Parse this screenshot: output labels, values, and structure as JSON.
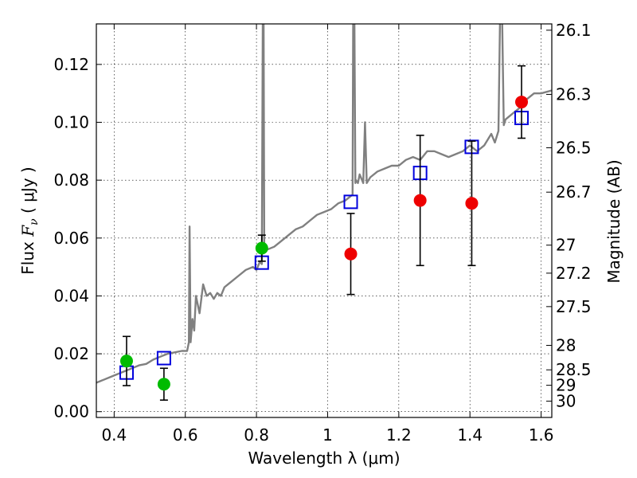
{
  "chart_data": {
    "type": "scatter",
    "xlabel": "Wavelength  λ (μm)",
    "ylabel": "Flux  F_ν  ( μJy )",
    "ylabel_parts": {
      "pre": "Flux  ",
      "var": "F",
      "sub": "ν",
      "post": "  ( μJy )"
    },
    "y2label": "Magnitude (AB)",
    "xlim": [
      0.35,
      1.63
    ],
    "ylim": [
      -0.002,
      0.134
    ],
    "x_ticks": [
      0.4,
      0.6,
      0.8,
      1.0,
      1.2,
      1.4,
      1.6
    ],
    "x_tick_labels": [
      "0.4",
      "0.6",
      "0.8",
      "1",
      "1.2",
      "1.4",
      "1.6"
    ],
    "y_ticks": [
      0.0,
      0.02,
      0.04,
      0.06,
      0.08,
      0.1,
      0.12
    ],
    "y_tick_labels": [
      "0.00",
      "0.02",
      "0.04",
      "0.06",
      "0.08",
      "0.10",
      "0.12"
    ],
    "mag_ticks": [
      "26.1",
      "26.3",
      "26.5",
      "26.7",
      "27",
      "27.2",
      "27.5",
      "28",
      "28.5",
      "29",
      "30"
    ],
    "grid": true,
    "colors": {
      "model": "#808080",
      "green": "#00bb00",
      "red": "#ee0000",
      "model_box": "#0000dd",
      "errorbar": "#000000"
    },
    "series": [
      {
        "kind": "line",
        "x": [
          0.35,
          0.37,
          0.39,
          0.41,
          0.43,
          0.45,
          0.47,
          0.49,
          0.51,
          0.53,
          0.55,
          0.57,
          0.59,
          0.605,
          0.61,
          0.612,
          0.615,
          0.62,
          0.625,
          0.63,
          0.64,
          0.65,
          0.66,
          0.67,
          0.68,
          0.69,
          0.7,
          0.71,
          0.72,
          0.73,
          0.75,
          0.77,
          0.79,
          0.8,
          0.81,
          0.815,
          0.818,
          0.82,
          0.822,
          0.825,
          0.83,
          0.85,
          0.87,
          0.89,
          0.91,
          0.93,
          0.95,
          0.97,
          0.99,
          1.01,
          1.03,
          1.05,
          1.06,
          1.07,
          1.072,
          1.075,
          1.078,
          1.08,
          1.085,
          1.09,
          1.1,
          1.105,
          1.11,
          1.12,
          1.14,
          1.16,
          1.18,
          1.2,
          1.22,
          1.24,
          1.26,
          1.28,
          1.3,
          1.32,
          1.34,
          1.36,
          1.38,
          1.4,
          1.42,
          1.44,
          1.46,
          1.47,
          1.48,
          1.485,
          1.49,
          1.495,
          1.5,
          1.52,
          1.54,
          1.56,
          1.58,
          1.6,
          1.63
        ],
        "y": [
          0.01,
          0.011,
          0.012,
          0.013,
          0.014,
          0.015,
          0.016,
          0.0165,
          0.018,
          0.019,
          0.02,
          0.0205,
          0.021,
          0.021,
          0.024,
          0.064,
          0.024,
          0.032,
          0.028,
          0.04,
          0.034,
          0.044,
          0.04,
          0.041,
          0.039,
          0.041,
          0.04,
          0.043,
          0.044,
          0.045,
          0.047,
          0.049,
          0.05,
          0.049,
          0.052,
          0.051,
          0.14,
          0.14,
          0.055,
          0.056,
          0.056,
          0.057,
          0.059,
          0.061,
          0.063,
          0.064,
          0.066,
          0.068,
          0.069,
          0.07,
          0.072,
          0.073,
          0.074,
          0.075,
          0.14,
          0.14,
          0.079,
          0.08,
          0.079,
          0.082,
          0.079,
          0.1,
          0.079,
          0.081,
          0.083,
          0.084,
          0.085,
          0.085,
          0.087,
          0.088,
          0.087,
          0.09,
          0.09,
          0.089,
          0.088,
          0.089,
          0.09,
          0.092,
          0.09,
          0.092,
          0.096,
          0.093,
          0.097,
          0.14,
          0.14,
          0.099,
          0.101,
          0.103,
          0.105,
          0.108,
          0.11,
          0.11,
          0.111
        ]
      },
      {
        "kind": "points",
        "name": "",
        "color": "green",
        "x": [
          0.435,
          0.54,
          0.815
        ],
        "y": [
          0.0175,
          0.0095,
          0.0565
        ],
        "err": [
          0.0085,
          0.0055,
          0.0045
        ]
      },
      {
        "kind": "points",
        "name": "",
        "color": "red",
        "x": [
          1.065,
          1.26,
          1.405,
          1.545
        ],
        "y": [
          0.0545,
          0.073,
          0.072,
          0.107
        ],
        "err": [
          0.014,
          0.0225,
          0.0215,
          0.0125
        ]
      },
      {
        "kind": "boxes",
        "name": "",
        "color": "model_box",
        "x": [
          0.435,
          0.54,
          0.815,
          1.065,
          1.26,
          1.405,
          1.545
        ],
        "y": [
          0.0135,
          0.0185,
          0.0515,
          0.0725,
          0.0825,
          0.0915,
          0.1015
        ]
      }
    ]
  }
}
